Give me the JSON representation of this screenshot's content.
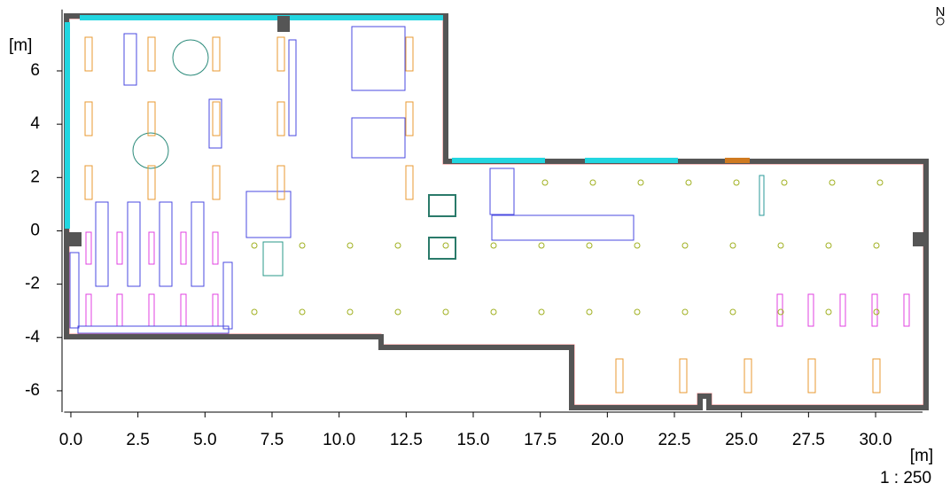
{
  "axes": {
    "x": {
      "unit": "[m]",
      "lim": [
        -0.25,
        31.75
      ],
      "ticks": [
        {
          "value": 0,
          "label": "0.0"
        },
        {
          "value": 2.5,
          "label": "2.5"
        },
        {
          "value": 5,
          "label": "5.0"
        },
        {
          "value": 7.5,
          "label": "7.5"
        },
        {
          "value": 10,
          "label": "10.0"
        },
        {
          "value": 12.5,
          "label": "12.5"
        },
        {
          "value": 15,
          "label": "15.0"
        },
        {
          "value": 17.5,
          "label": "17.5"
        },
        {
          "value": 20,
          "label": "20.0"
        },
        {
          "value": 22.5,
          "label": "22.5"
        },
        {
          "value": 25,
          "label": "25.0"
        },
        {
          "value": 27.5,
          "label": "27.5"
        },
        {
          "value": 30,
          "label": "30.0"
        }
      ]
    },
    "y": {
      "unit": "[m]",
      "lim": [
        -6.8,
        8.3
      ],
      "ticks": [
        -6,
        -4,
        -2,
        0,
        2,
        4,
        6
      ]
    }
  },
  "scale": "1 : 250",
  "north": "N"
}
